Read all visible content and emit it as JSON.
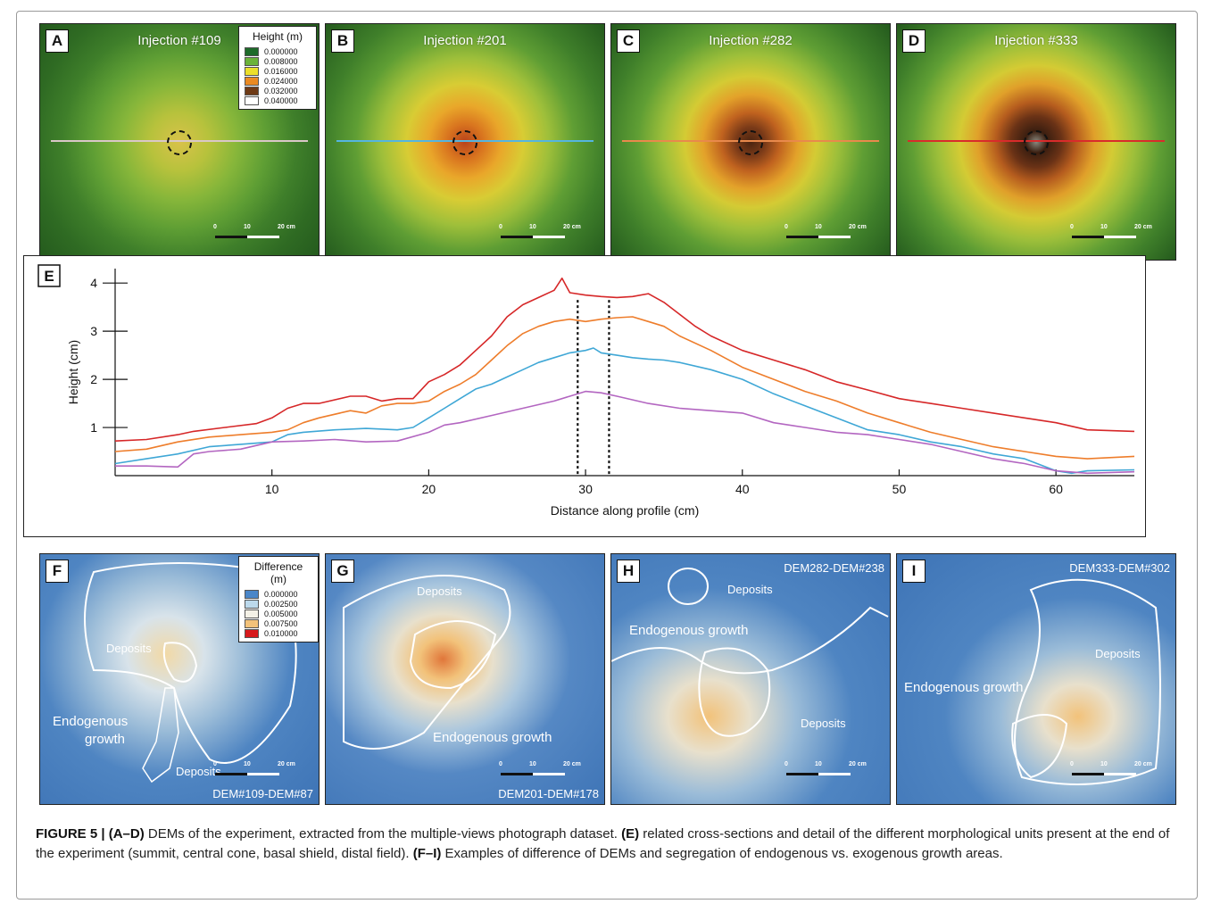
{
  "panels_top": [
    {
      "label": "A",
      "title": "Injection #109",
      "profile_color": "#d9c7c7"
    },
    {
      "label": "B",
      "title": "Injection #201",
      "profile_color": "#55b5e0"
    },
    {
      "label": "C",
      "title": "Injection #282",
      "profile_color": "#e8894c"
    },
    {
      "label": "D",
      "title": "Injection #333",
      "profile_color": "#d92b2b"
    }
  ],
  "scalebar": {
    "zero": "0",
    "mid": "10",
    "end": "20 cm"
  },
  "height_legend": {
    "title": "Height (m)",
    "items": [
      {
        "value": "0.000000",
        "color": "#1e6b2a"
      },
      {
        "value": "0.008000",
        "color": "#6cb33a"
      },
      {
        "value": "0.016000",
        "color": "#ecdf2a"
      },
      {
        "value": "0.024000",
        "color": "#ea8a22"
      },
      {
        "value": "0.032000",
        "color": "#6e3a16"
      },
      {
        "value": "0.040000",
        "color": "#ffffff"
      }
    ]
  },
  "panel_e": {
    "label": "E"
  },
  "chart_data": {
    "type": "line",
    "xlabel": "Distance along profile (cm)",
    "ylabel": "Height (cm)",
    "xlim": [
      0,
      65
    ],
    "ylim": [
      0,
      4.3
    ],
    "xticks": [
      "10",
      "20",
      "30",
      "40",
      "50",
      "60"
    ],
    "yticks": [
      "1",
      "2",
      "3",
      "4"
    ],
    "vlines": [
      29.5,
      31.5
    ],
    "series": [
      {
        "color": "#d62728",
        "x": [
          0,
          2,
          4,
          5,
          7,
          9,
          10,
          11,
          12,
          13,
          15,
          16,
          17,
          18,
          19,
          20,
          21,
          22,
          23,
          24,
          25,
          26,
          27,
          28,
          28.5,
          29,
          30,
          31,
          32,
          33,
          34,
          35,
          36,
          37,
          38,
          40,
          42,
          44,
          46,
          48,
          50,
          52,
          54,
          56,
          58,
          60,
          62,
          65
        ],
        "y": [
          0.72,
          0.75,
          0.85,
          0.92,
          1.0,
          1.08,
          1.2,
          1.4,
          1.5,
          1.5,
          1.65,
          1.65,
          1.55,
          1.6,
          1.6,
          1.95,
          2.1,
          2.3,
          2.6,
          2.9,
          3.3,
          3.55,
          3.7,
          3.85,
          4.1,
          3.8,
          3.75,
          3.72,
          3.7,
          3.72,
          3.78,
          3.6,
          3.35,
          3.1,
          2.9,
          2.6,
          2.4,
          2.2,
          1.95,
          1.78,
          1.6,
          1.5,
          1.4,
          1.3,
          1.2,
          1.1,
          0.95,
          0.92
        ]
      },
      {
        "color": "#ee7d2b",
        "x": [
          0,
          2,
          4,
          6,
          8,
          10,
          11,
          12,
          13,
          15,
          16,
          17,
          18,
          19,
          20,
          21,
          22,
          23,
          24,
          25,
          26,
          27,
          28,
          29,
          30,
          31,
          32,
          33,
          34,
          35,
          36,
          38,
          40,
          42,
          44,
          46,
          48,
          50,
          52,
          54,
          56,
          58,
          60,
          62,
          65
        ],
        "y": [
          0.5,
          0.55,
          0.7,
          0.8,
          0.85,
          0.9,
          0.95,
          1.1,
          1.2,
          1.35,
          1.3,
          1.45,
          1.5,
          1.5,
          1.55,
          1.75,
          1.9,
          2.1,
          2.4,
          2.7,
          2.95,
          3.1,
          3.2,
          3.25,
          3.2,
          3.25,
          3.28,
          3.3,
          3.2,
          3.1,
          2.9,
          2.6,
          2.25,
          2.0,
          1.75,
          1.55,
          1.3,
          1.1,
          0.9,
          0.75,
          0.6,
          0.5,
          0.4,
          0.35,
          0.4
        ]
      },
      {
        "color": "#3fa7d6",
        "x": [
          0,
          2,
          4,
          6,
          8,
          10,
          11,
          12,
          14,
          16,
          18,
          19,
          20,
          21,
          22,
          23,
          24,
          25,
          26,
          27,
          28,
          29,
          30,
          30.5,
          31,
          32,
          33,
          34,
          35,
          36,
          38,
          40,
          42,
          44,
          46,
          48,
          50,
          52,
          54,
          56,
          58,
          60,
          61,
          62,
          65
        ],
        "y": [
          0.25,
          0.35,
          0.45,
          0.6,
          0.65,
          0.7,
          0.85,
          0.9,
          0.95,
          0.98,
          0.95,
          1.0,
          1.2,
          1.4,
          1.6,
          1.8,
          1.9,
          2.05,
          2.2,
          2.35,
          2.45,
          2.55,
          2.6,
          2.65,
          2.55,
          2.5,
          2.45,
          2.42,
          2.4,
          2.35,
          2.2,
          2.0,
          1.7,
          1.45,
          1.2,
          0.95,
          0.85,
          0.7,
          0.6,
          0.45,
          0.35,
          0.1,
          0.05,
          0.1,
          0.12
        ]
      },
      {
        "color": "#b366c1",
        "x": [
          0,
          2,
          4,
          5,
          6,
          8,
          10,
          12,
          14,
          16,
          18,
          20,
          21,
          22,
          24,
          26,
          28,
          29,
          30,
          31,
          32,
          34,
          36,
          38,
          40,
          42,
          44,
          46,
          48,
          50,
          52,
          54,
          56,
          58,
          60,
          62,
          65
        ],
        "y": [
          0.2,
          0.2,
          0.18,
          0.45,
          0.5,
          0.55,
          0.7,
          0.72,
          0.75,
          0.7,
          0.72,
          0.9,
          1.05,
          1.1,
          1.25,
          1.4,
          1.55,
          1.65,
          1.75,
          1.72,
          1.65,
          1.5,
          1.4,
          1.35,
          1.3,
          1.1,
          1.0,
          0.9,
          0.85,
          0.75,
          0.65,
          0.5,
          0.35,
          0.25,
          0.1,
          0.05,
          0.08
        ]
      }
    ]
  },
  "panels_bottom": [
    {
      "label": "F",
      "bottom_label": "DEM#109-DEM#87",
      "ann": {
        "deposits1": "Deposits",
        "deposits2": "Deposits",
        "endo_line1": "Endogenous",
        "endo_line2": "growth"
      }
    },
    {
      "label": "G",
      "bottom_label": "DEM201-DEM#178",
      "ann": {
        "deposits": "Deposits",
        "endo": "Endogenous growth"
      }
    },
    {
      "label": "H",
      "top_label": "DEM282-DEM#238",
      "ann": {
        "deposits1": "Deposits",
        "deposits2": "Deposits",
        "endo": "Endogenous growth"
      }
    },
    {
      "label": "I",
      "top_label": "DEM333-DEM#302",
      "ann": {
        "deposits": "Deposits",
        "endo": "Endogenous growth"
      }
    }
  ],
  "diff_legend": {
    "title_line1": "Difference",
    "title_line2": "(m)",
    "items": [
      {
        "value": "0.000000",
        "color": "#4a86c8"
      },
      {
        "value": "0.002500",
        "color": "#bcd9ec"
      },
      {
        "value": "0.005000",
        "color": "#f4f1e6"
      },
      {
        "value": "0.007500",
        "color": "#f2c27a"
      },
      {
        "value": "0.010000",
        "color": "#d7191c"
      }
    ]
  },
  "caption": {
    "fig": "FIGURE 5 | ",
    "p1b": "(A–D)",
    "p1": " DEMs of the experiment, extracted from the multiple-views photograph dataset. ",
    "p2b": "(E)",
    "p2": " related cross-sections and detail of the different morphological units present at the end of the experiment (summit, central cone, basal shield, distal field). ",
    "p3b": "(F–I)",
    "p3": " Examples of difference of DEMs and segregation of endogenous vs. exogenous growth areas."
  }
}
